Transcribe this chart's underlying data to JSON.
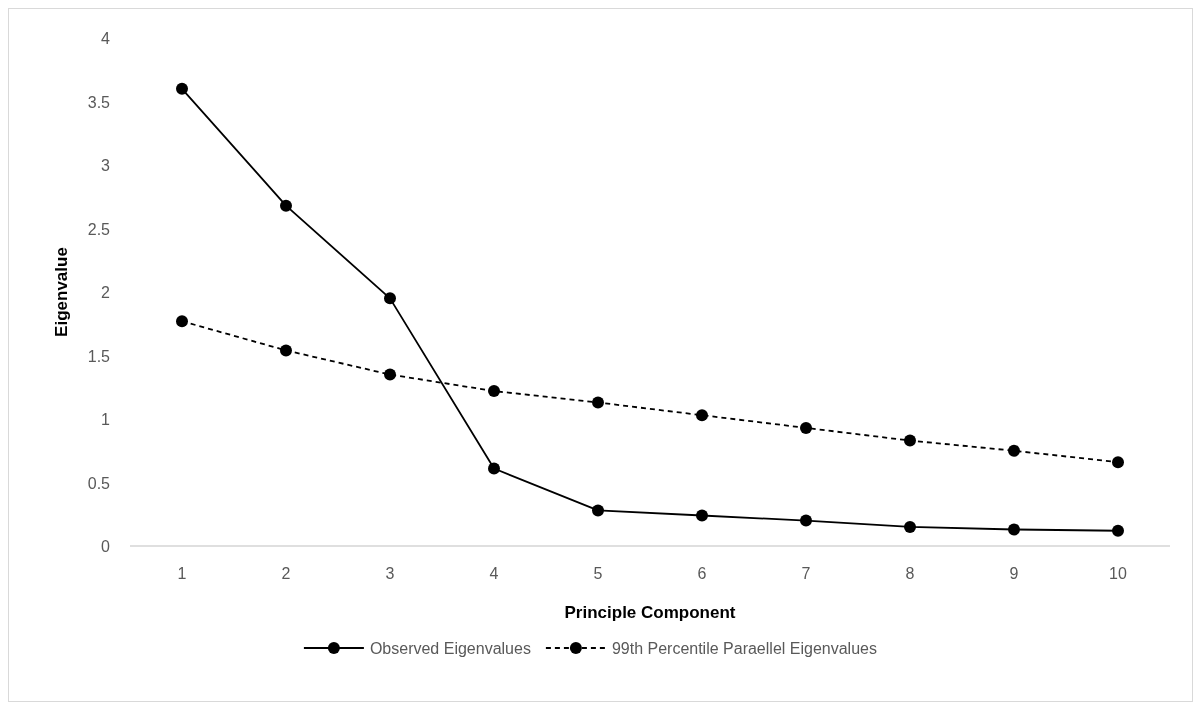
{
  "chart_data": {
    "type": "line",
    "xlabel": "Principle Component",
    "ylabel": "Eigenvalue",
    "categories": [
      "1",
      "2",
      "3",
      "4",
      "5",
      "6",
      "7",
      "8",
      "9",
      "10"
    ],
    "series": [
      {
        "name": "Observed Eigenvalues",
        "color": "#000000",
        "line_style": "solid",
        "values": [
          3.6,
          2.68,
          1.95,
          0.61,
          0.28,
          0.24,
          0.2,
          0.15,
          0.13,
          0.12
        ]
      },
      {
        "name": "99th Percentile Paraellel Eigenvalues",
        "color": "#000000",
        "line_style": "dashed",
        "values": [
          1.77,
          1.54,
          1.35,
          1.22,
          1.13,
          1.03,
          0.93,
          0.83,
          0.75,
          0.66
        ]
      }
    ],
    "ylim": [
      0,
      4
    ],
    "yticks": [
      0,
      0.5,
      1,
      1.5,
      2,
      2.5,
      3,
      3.5,
      4
    ],
    "grid": false,
    "legend": "bottom",
    "marker": "circle"
  }
}
